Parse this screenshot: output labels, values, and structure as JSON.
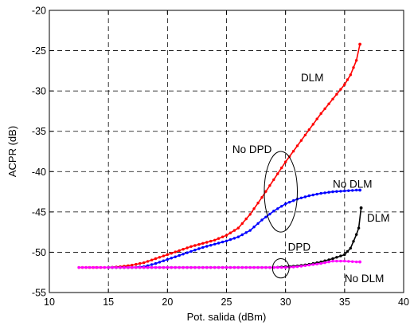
{
  "chart_data": {
    "type": "line",
    "title": "",
    "xlabel": "Pot. salida (dBm)",
    "ylabel": "ACPR (dB)",
    "xlim": [
      10,
      40
    ],
    "ylim": [
      -55,
      -20
    ],
    "xticks": [
      "10",
      "15",
      "20",
      "25",
      "30",
      "35",
      "40"
    ],
    "yticks": [
      "-20",
      "-25",
      "-30",
      "-35",
      "-40",
      "-45",
      "-50",
      "-55"
    ],
    "grid": true,
    "grid_style": "dashed",
    "legend": "none",
    "series": [
      {
        "color": "#ff0000",
        "x": [
          12.5,
          14,
          15,
          16,
          17,
          18,
          19,
          20,
          21,
          22,
          23,
          24,
          25,
          26,
          27,
          28,
          29,
          30,
          31,
          32,
          33,
          34,
          35,
          35.5,
          36,
          36.3
        ],
        "y": [
          -51.9,
          -51.9,
          -51.9,
          -51.8,
          -51.6,
          -51.3,
          -50.8,
          -50.3,
          -49.8,
          -49.3,
          -48.9,
          -48.5,
          -47.9,
          -47.0,
          -45.3,
          -43.2,
          -41.0,
          -38.8,
          -36.8,
          -34.8,
          -32.8,
          -31.0,
          -29.2,
          -28.0,
          -26.2,
          -24.2
        ]
      },
      {
        "color": "#0000ff",
        "x": [
          15,
          16,
          17,
          18,
          19,
          20,
          21,
          22,
          23,
          24,
          25,
          26,
          27,
          28,
          29,
          30,
          31,
          32,
          33,
          34,
          35,
          36,
          36.3
        ],
        "y": [
          -51.9,
          -51.9,
          -51.9,
          -51.8,
          -51.4,
          -50.9,
          -50.4,
          -49.9,
          -49.4,
          -49.0,
          -48.6,
          -48.1,
          -47.3,
          -46.0,
          -44.9,
          -44.0,
          -43.4,
          -43.0,
          -42.7,
          -42.5,
          -42.4,
          -42.3,
          -42.3
        ]
      },
      {
        "color": "#000000",
        "x": [
          15,
          17,
          19,
          21,
          23,
          25,
          27,
          29,
          30,
          31,
          32,
          33,
          34,
          35,
          35.5,
          36,
          36.2,
          36.4
        ],
        "y": [
          -51.9,
          -51.9,
          -51.9,
          -51.9,
          -51.9,
          -51.9,
          -51.9,
          -51.9,
          -51.8,
          -51.7,
          -51.5,
          -51.2,
          -50.8,
          -50.3,
          -49.5,
          -47.8,
          -47.0,
          -44.5
        ]
      },
      {
        "color": "#ff00ff",
        "x": [
          12.5,
          15,
          17,
          19,
          21,
          23,
          25,
          27,
          29,
          30,
          31,
          32,
          33,
          34,
          35,
          36,
          36.3
        ],
        "y": [
          -51.9,
          -51.9,
          -51.9,
          -51.9,
          -51.9,
          -51.9,
          -51.9,
          -51.9,
          -51.9,
          -51.9,
          -51.8,
          -51.6,
          -51.4,
          -51.1,
          -51.1,
          -51.2,
          -51.2
        ]
      }
    ],
    "annotations": [
      {
        "text": "DLM",
        "x": 31.3,
        "y": -28.8
      },
      {
        "text": "No DPD",
        "x": 25.5,
        "y": -37.7
      },
      {
        "text": "No DLM",
        "x": 34.0,
        "y": -42.0
      },
      {
        "text": "DPD",
        "x": 30.2,
        "y": -49.8
      },
      {
        "text": "DLM",
        "x": 36.9,
        "y": -46.2
      },
      {
        "text": "No DLM",
        "x": 35.0,
        "y": -53.7
      }
    ],
    "ellipses": [
      {
        "cx": 29.6,
        "cy": -42.5,
        "rx": 1.4,
        "ry": 5.0
      },
      {
        "cx": 29.6,
        "cy": -52.0,
        "rx": 0.7,
        "ry": 1.2
      }
    ]
  }
}
